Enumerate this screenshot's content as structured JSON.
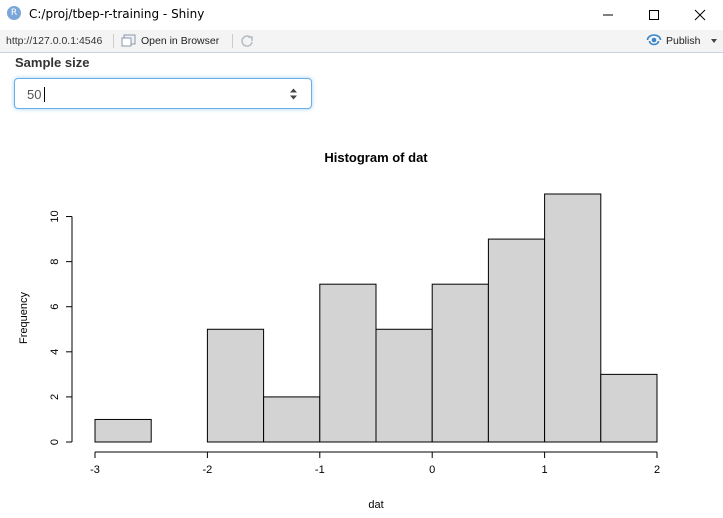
{
  "window": {
    "title": "C:/proj/tbep-r-training - Shiny",
    "app_icon": "R"
  },
  "toolbar": {
    "url": "http://127.0.0.1:4546",
    "open_browser_label": "Open in Browser",
    "publish_label": "Publish"
  },
  "input": {
    "label": "Sample size",
    "value": "50"
  },
  "chart_data": {
    "type": "bar",
    "title": "Histogram of dat",
    "xlabel": "dat",
    "ylabel": "Frequency",
    "bin_edges": [
      -3,
      -2.5,
      -2,
      -1.5,
      -1,
      -0.5,
      0,
      0.5,
      1,
      1.5,
      2
    ],
    "values": [
      1,
      0,
      5,
      2,
      7,
      5,
      7,
      9,
      11,
      3
    ],
    "xlim": [
      -3,
      2
    ],
    "ylim": [
      0,
      11
    ],
    "x_ticks": [
      -3,
      -2,
      -1,
      0,
      1,
      2
    ],
    "y_ticks": [
      0,
      2,
      4,
      6,
      8,
      10
    ],
    "bar_color": "#d3d3d3",
    "grid": false
  }
}
